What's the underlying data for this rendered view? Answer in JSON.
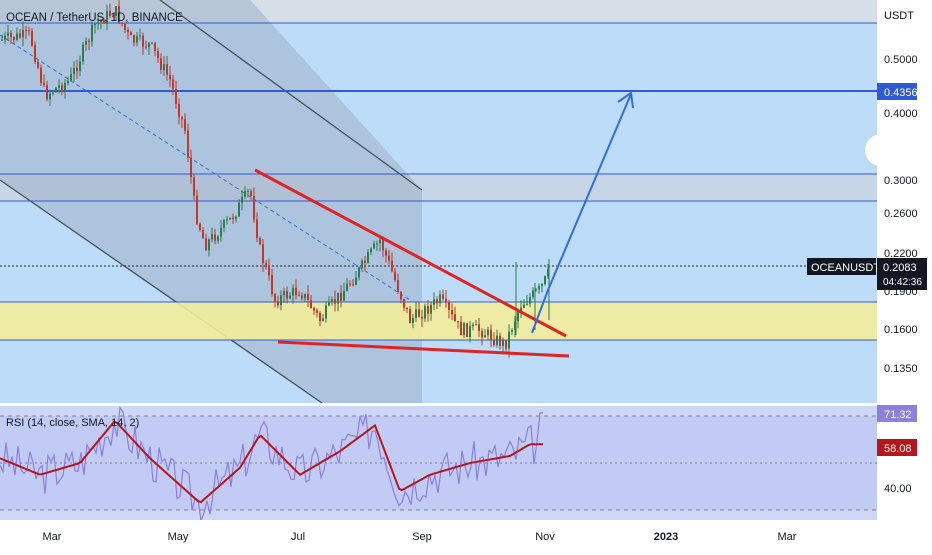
{
  "header": {
    "symbol_title": "OCEAN / TetherUS, 1D, BINANCE"
  },
  "price_axis": {
    "currency": "USDT",
    "ticks": [
      "0.5000",
      "0.4000",
      "0.3000",
      "0.2600",
      "0.2200",
      "0.1600",
      "0.1350"
    ],
    "partial_tick": "0.1900"
  },
  "badges": {
    "target_level": "0.4356",
    "ticker": "OCEANUSDT",
    "last_price": "0.2083",
    "countdown": "04:42:36",
    "rsi_value": "71.32",
    "rsi_ma_value": "58.08"
  },
  "rsi_panel": {
    "title": "RSI (14, close, SMA, 14, 2)",
    "axis_label": "40.00"
  },
  "time_axis": {
    "labels": [
      "Mar",
      "May",
      "Jul",
      "Sep",
      "Nov",
      "2023",
      "Mar"
    ]
  },
  "colors": {
    "chart_bg": "#bcdcf9",
    "rsi_bg": "#cfd7f7",
    "up_candle": "#2e7d4f",
    "down_candle": "#c0392b",
    "hline": "#2f5ad6",
    "wedge": "#e02424",
    "forecast_arrow": "#2f6ee0",
    "support_zone": "#f3ed9a",
    "channel": "#9fb0c7",
    "rsi_line": "#8e7fdc",
    "rsi_ma": "#b5161b"
  },
  "chart_data": [
    {
      "type": "candlestick",
      "title": "OCEAN / TetherUS, 1D, BINANCE",
      "y_unit": "USDT",
      "y_scale": "log",
      "ylim": [
        0.12,
        0.56
      ],
      "x_labels": [
        "Mar",
        "May",
        "Jul",
        "Sep",
        "Nov",
        "2023",
        "Mar"
      ],
      "y_ticks": [
        0.5,
        0.4,
        0.3,
        0.26,
        0.22,
        0.16,
        0.135
      ],
      "last_price": 0.2083,
      "horizontal_levels": [
        0.5343,
        0.4356,
        0.3052,
        0.2718,
        0.2083
      ],
      "support_zone": [
        0.1698,
        0.1901
      ],
      "annotations": [
        "descending channel",
        "falling wedge",
        "breakout arrow to 0.4356"
      ],
      "approx_closes": [
        {
          "x": "Mar",
          "y": 0.45
        },
        {
          "x": "May",
          "y": 0.38
        },
        {
          "x": "Jul",
          "y": 0.18
        },
        {
          "x": "Sep",
          "y": 0.17
        },
        {
          "x": "Nov",
          "y": 0.2083
        }
      ]
    },
    {
      "type": "line",
      "title": "RSI (14, close, SMA, 14, 2)",
      "ylim": [
        30,
        78
      ],
      "y_ticks": [
        40.0
      ],
      "guide_levels": [
        70,
        50,
        30
      ],
      "series": [
        {
          "name": "RSI",
          "last": 71.32
        },
        {
          "name": "RSI-based MA",
          "last": 58.08
        }
      ]
    }
  ]
}
